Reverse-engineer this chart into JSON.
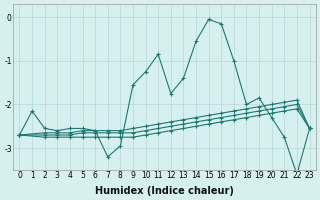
{
  "xlabel": "Humidex (Indice chaleur)",
  "bg_color": "#d6f0f0",
  "line_color": "#1a7a6e",
  "grid_color": "#b8d8d8",
  "lines": [
    {
      "x": [
        0,
        1,
        2,
        3,
        4,
        5,
        6,
        7,
        8,
        9,
        10,
        11,
        12,
        13,
        14,
        15,
        16,
        17,
        18,
        19,
        20,
        21,
        22,
        23
      ],
      "y": [
        -2.7,
        -2.15,
        -2.55,
        -2.6,
        -2.55,
        -2.55,
        -2.6,
        -3.2,
        -2.95,
        -1.55,
        -1.25,
        -0.85,
        -1.75,
        -1.4,
        -0.55,
        -0.05,
        -0.15,
        -1.0,
        -2.0,
        -1.85,
        -2.3,
        -2.75,
        -3.6,
        -2.55
      ]
    },
    {
      "x": [
        0,
        2,
        3,
        4,
        5,
        6,
        7,
        8,
        9,
        10,
        11,
        12,
        13,
        14,
        15,
        16,
        17,
        18,
        19,
        20,
        21,
        22,
        23
      ],
      "y": [
        -2.7,
        -2.65,
        -2.65,
        -2.65,
        -2.6,
        -2.6,
        -2.6,
        -2.6,
        -2.55,
        -2.5,
        -2.45,
        -2.4,
        -2.35,
        -2.3,
        -2.25,
        -2.2,
        -2.15,
        -2.1,
        -2.05,
        -2.0,
        -1.95,
        -1.9,
        -2.55
      ]
    },
    {
      "x": [
        0,
        2,
        3,
        4,
        5,
        6,
        7,
        8,
        9,
        10,
        11,
        12,
        13,
        14,
        15,
        16,
        17,
        18,
        19,
        20,
        21,
        22,
        23
      ],
      "y": [
        -2.7,
        -2.7,
        -2.7,
        -2.7,
        -2.65,
        -2.65,
        -2.65,
        -2.65,
        -2.65,
        -2.6,
        -2.55,
        -2.5,
        -2.45,
        -2.4,
        -2.35,
        -2.3,
        -2.25,
        -2.2,
        -2.15,
        -2.1,
        -2.05,
        -2.0,
        -2.55
      ]
    },
    {
      "x": [
        0,
        2,
        3,
        4,
        5,
        6,
        7,
        8,
        9,
        10,
        11,
        12,
        13,
        14,
        15,
        16,
        17,
        18,
        19,
        20,
        21,
        22,
        23
      ],
      "y": [
        -2.7,
        -2.75,
        -2.75,
        -2.75,
        -2.75,
        -2.75,
        -2.75,
        -2.75,
        -2.75,
        -2.7,
        -2.65,
        -2.6,
        -2.55,
        -2.5,
        -2.45,
        -2.4,
        -2.35,
        -2.3,
        -2.25,
        -2.2,
        -2.15,
        -2.1,
        -2.55
      ]
    }
  ],
  "xlim": [
    -0.5,
    23.5
  ],
  "ylim": [
    -3.5,
    0.3
  ],
  "yticks": [
    0,
    -1,
    -2,
    -3
  ],
  "xticks": [
    0,
    1,
    2,
    3,
    4,
    5,
    6,
    7,
    8,
    9,
    10,
    11,
    12,
    13,
    14,
    15,
    16,
    17,
    18,
    19,
    20,
    21,
    22,
    23
  ],
  "tick_fontsize": 5.5,
  "xlabel_fontsize": 7
}
